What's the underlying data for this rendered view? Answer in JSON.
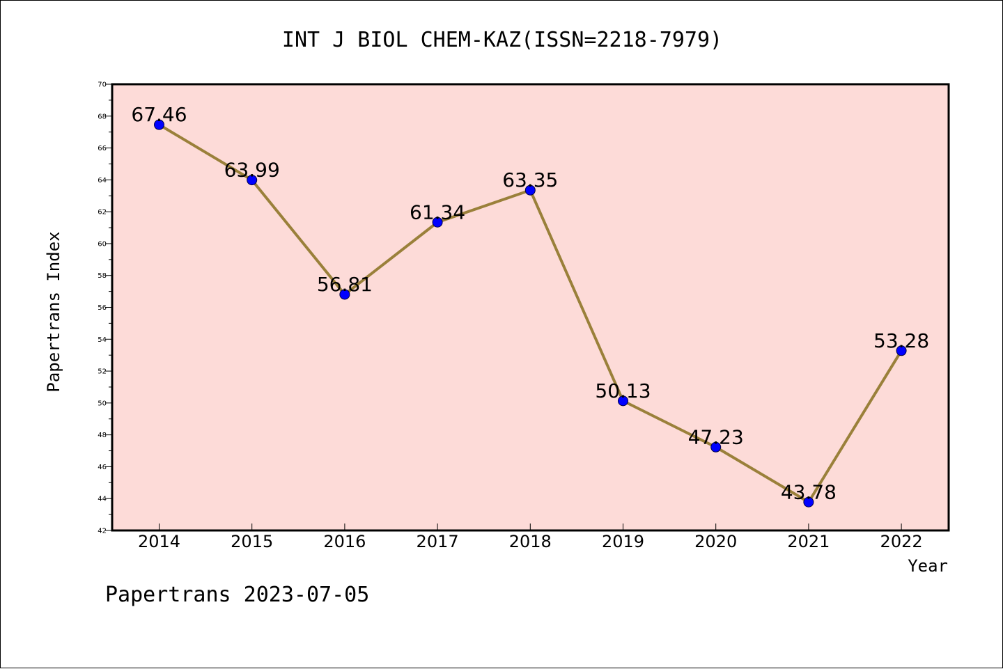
{
  "chart_data": {
    "type": "line",
    "title": "INT J BIOL CHEM-KAZ(ISSN=2218-7979)",
    "xlabel": "Year",
    "ylabel": "Papertrans Index",
    "categories": [
      "2014",
      "2015",
      "2016",
      "2017",
      "2018",
      "2019",
      "2020",
      "2021",
      "2022"
    ],
    "values": [
      67.46,
      63.99,
      56.81,
      61.34,
      63.35,
      50.13,
      47.23,
      43.78,
      53.28
    ],
    "data_labels": [
      "67.46",
      "63.99",
      "56.81",
      "61.34",
      "63.35",
      "50.13",
      "47.23",
      "43.78",
      "53.28"
    ],
    "ylim": [
      42,
      70
    ],
    "yticks": [
      42,
      44,
      46,
      48,
      50,
      52,
      54,
      56,
      58,
      60,
      62,
      64,
      66,
      68,
      70
    ],
    "grid": false,
    "legend": "none",
    "footer": "Papertrans 2023-07-05",
    "colors": {
      "plot_background": "#fddbd8",
      "line": "#9a803a",
      "marker": "#0000ff",
      "axis": "#000000"
    }
  }
}
